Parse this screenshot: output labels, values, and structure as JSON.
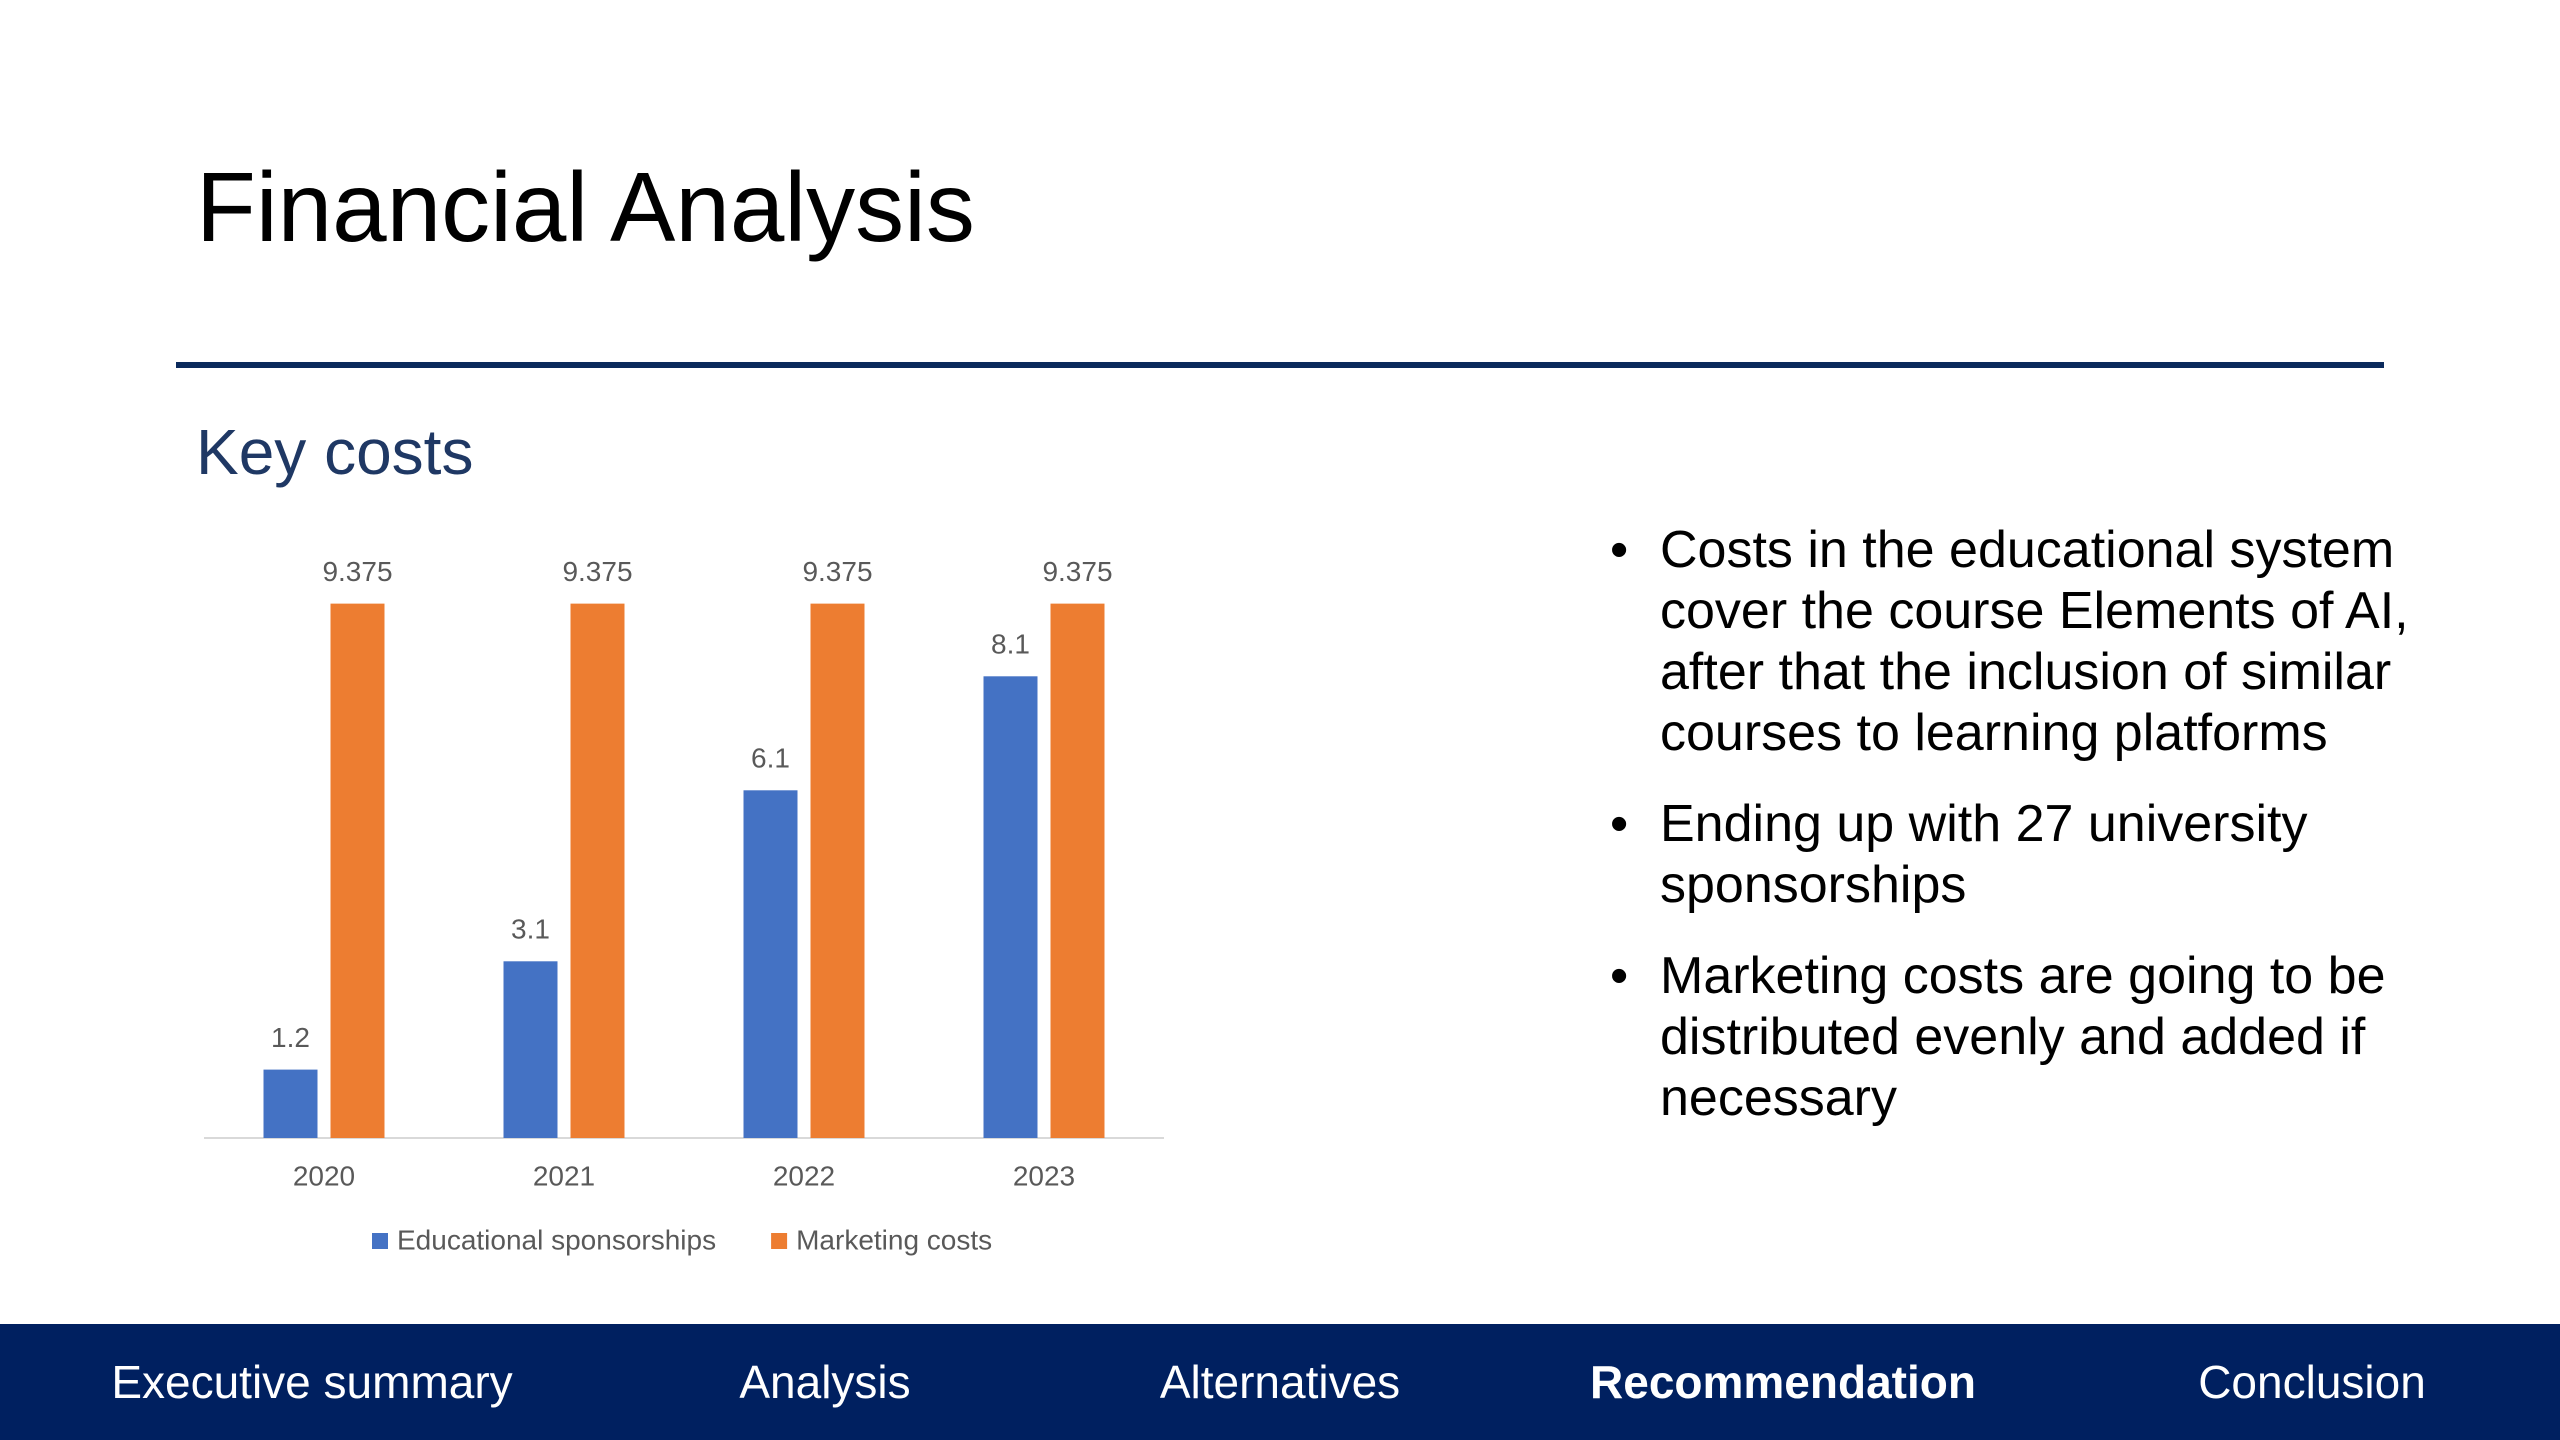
{
  "title": "Financial Analysis",
  "chart_data": {
    "type": "bar",
    "title": "Key costs",
    "categories": [
      "2020",
      "2021",
      "2022",
      "2023"
    ],
    "series": [
      {
        "name": "Educational sponsorships",
        "color": "#4472c4",
        "values": [
          1.2,
          3.1,
          6.1,
          8.1
        ]
      },
      {
        "name": "Marketing costs",
        "color": "#ed7d31",
        "values": [
          9.375,
          9.375,
          9.375,
          9.375
        ]
      }
    ],
    "ylim": [
      0,
      10
    ],
    "legend": "bottom",
    "data_labels": true
  },
  "bullets": [
    "Costs in the educational system cover the course Elements of AI, after that the inclusion of similar courses to learning platforms",
    "Ending up with 27 university sponsorships",
    "Marketing costs are going to be distributed evenly and added if necessary"
  ],
  "nav": [
    "Executive summary",
    "Analysis",
    "Alternatives",
    "Recommendation",
    "Conclusion"
  ]
}
